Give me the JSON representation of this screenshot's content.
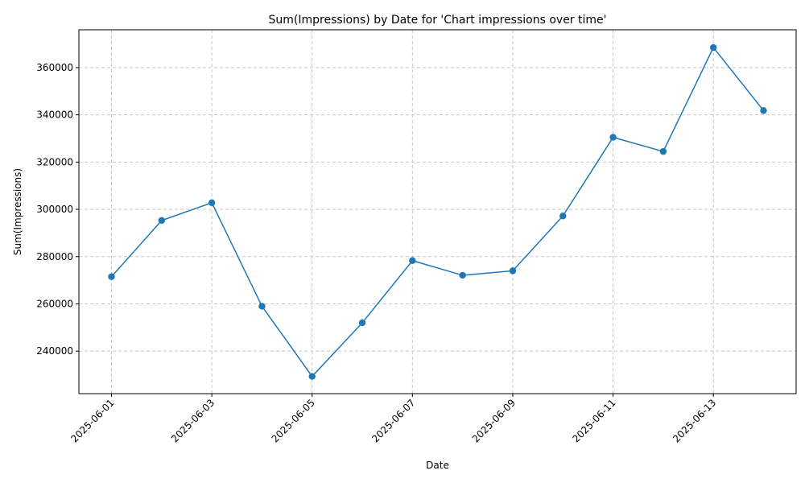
{
  "chart_data": {
    "type": "line",
    "title": "Sum(Impressions) by Date for 'Chart impressions over time'",
    "xlabel": "Date",
    "ylabel": "Sum(Impressions)",
    "x": [
      "2025-06-01",
      "2025-06-02",
      "2025-06-03",
      "2025-06-04",
      "2025-06-05",
      "2025-06-06",
      "2025-06-07",
      "2025-06-08",
      "2025-06-09",
      "2025-06-10",
      "2025-06-11",
      "2025-06-12",
      "2025-06-13",
      "2025-06-14"
    ],
    "x_ticks": [
      "2025-06-01",
      "2025-06-03",
      "2025-06-05",
      "2025-06-07",
      "2025-06-09",
      "2025-06-11",
      "2025-06-13"
    ],
    "y_ticks": [
      240000,
      260000,
      280000,
      300000,
      320000,
      340000,
      360000
    ],
    "ylim": [
      222000,
      376000
    ],
    "grid": true,
    "series": [
      {
        "values": [
          271500,
          295300,
          302800,
          259000,
          229300,
          252000,
          278300,
          272100,
          274000,
          297200,
          330500,
          324500,
          368500,
          341800
        ],
        "color": "#1f77b4",
        "marker": "circle"
      }
    ]
  }
}
